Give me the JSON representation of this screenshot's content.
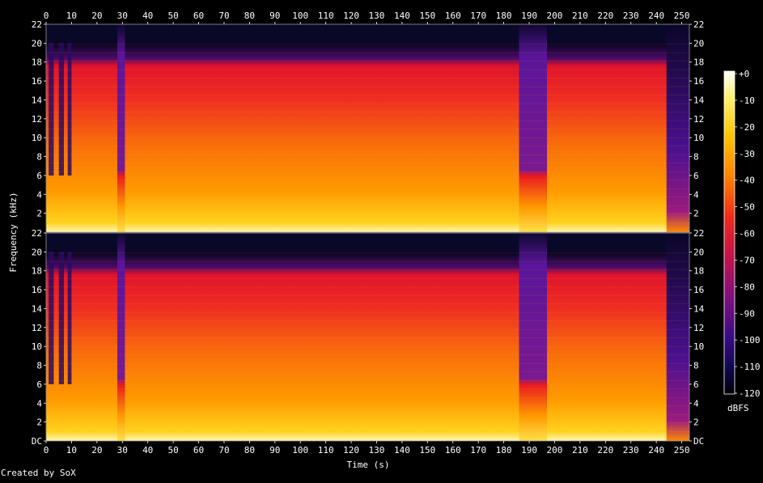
{
  "chart_data": {
    "type": "heatmap",
    "xlabel": "Time (s)",
    "ylabel": "Frequency (kHz)",
    "xlim": [
      0,
      253
    ],
    "ylim": [
      0,
      22
    ],
    "x_ticks": [
      "0",
      "10",
      "20",
      "30",
      "40",
      "50",
      "60",
      "70",
      "80",
      "90",
      "100",
      "110",
      "120",
      "130",
      "140",
      "150",
      "160",
      "170",
      "180",
      "190",
      "200",
      "210",
      "220",
      "230",
      "240",
      "250"
    ],
    "y_ticks": [
      "DC",
      "2",
      "4",
      "6",
      "8",
      "10",
      "12",
      "14",
      "16",
      "18",
      "20",
      "22"
    ],
    "y_ticks_upper": [
      "2",
      "4",
      "6",
      "8",
      "10",
      "12",
      "14",
      "16",
      "18",
      "20",
      "22"
    ],
    "channels": 2,
    "colorbar": {
      "label": "dBFS",
      "ticks": [
        "+0",
        "-10",
        "-20",
        "-30",
        "-40",
        "-50",
        "-60",
        "-70",
        "-80",
        "-90",
        "-100",
        "-110",
        "-120"
      ],
      "range": [
        -120,
        0
      ]
    },
    "spectral_cutoff_khz": 20,
    "low_energy_time_ranges_s": [
      [
        28,
        31
      ],
      [
        186,
        197
      ],
      [
        244,
        253
      ]
    ],
    "credit": "Created by SoX"
  }
}
